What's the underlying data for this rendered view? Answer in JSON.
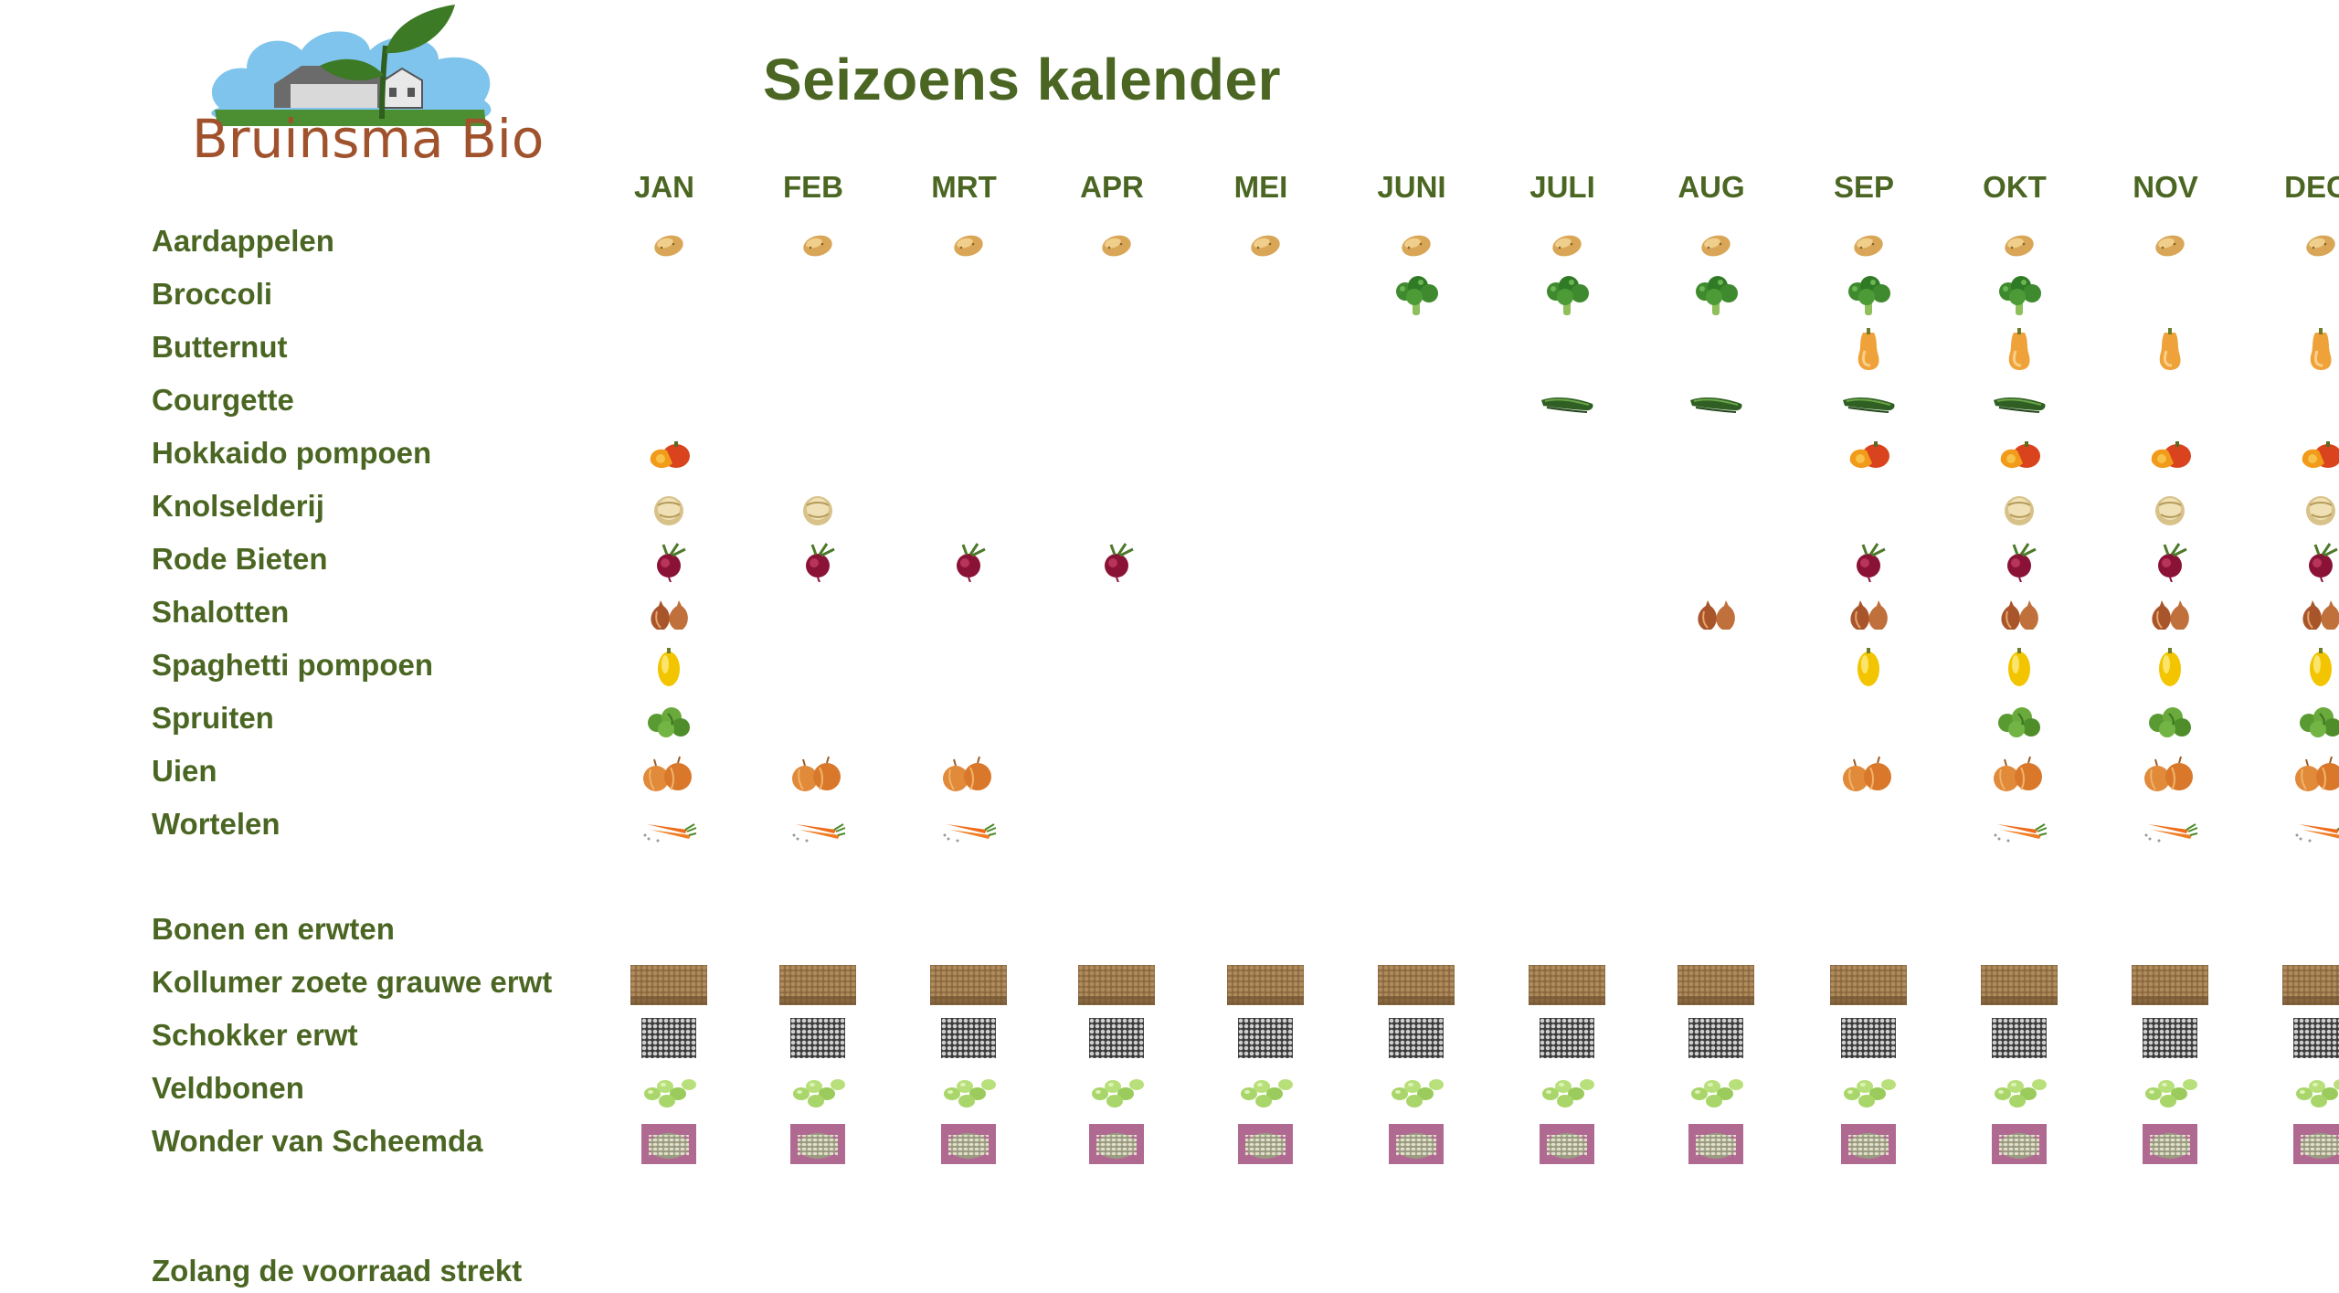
{
  "logo": {
    "brand": "Bruinsma Bio"
  },
  "title": "Seizoens kalender",
  "months": [
    "JAN",
    "FEB",
    "MRT",
    "APR",
    "MEI",
    "JUNI",
    "JULI",
    "AUG",
    "SEP",
    "OKT",
    "NOV",
    "DEC"
  ],
  "vegetables": [
    {
      "label": "Aardappelen",
      "icon": "potato-icon",
      "months": [
        1,
        1,
        1,
        1,
        1,
        1,
        1,
        1,
        1,
        1,
        1,
        1
      ]
    },
    {
      "label": "Broccoli",
      "icon": "broccoli-icon",
      "months": [
        0,
        0,
        0,
        0,
        0,
        1,
        1,
        1,
        1,
        1,
        0,
        0
      ]
    },
    {
      "label": "Butternut",
      "icon": "butternut-icon",
      "months": [
        0,
        0,
        0,
        0,
        0,
        0,
        0,
        0,
        1,
        1,
        1,
        1
      ]
    },
    {
      "label": "Courgette",
      "icon": "courgette-icon",
      "months": [
        0,
        0,
        0,
        0,
        0,
        0,
        1,
        1,
        1,
        1,
        0,
        0
      ]
    },
    {
      "label": "Hokkaido pompoen",
      "icon": "hokkaido-pumpkin-icon",
      "months": [
        1,
        0,
        0,
        0,
        0,
        0,
        0,
        0,
        1,
        1,
        1,
        1
      ]
    },
    {
      "label": "Knolselderij",
      "icon": "celeriac-icon",
      "months": [
        1,
        1,
        0,
        0,
        0,
        0,
        0,
        0,
        0,
        1,
        1,
        1
      ]
    },
    {
      "label": "Rode Bieten",
      "icon": "beetroot-icon",
      "months": [
        1,
        1,
        1,
        1,
        0,
        0,
        0,
        0,
        1,
        1,
        1,
        1
      ]
    },
    {
      "label": "Shalotten",
      "icon": "shallot-icon",
      "months": [
        1,
        0,
        0,
        0,
        0,
        0,
        0,
        1,
        1,
        1,
        1,
        1
      ]
    },
    {
      "label": "Spaghetti pompoen",
      "icon": "spaghetti-squash-icon",
      "months": [
        1,
        0,
        0,
        0,
        0,
        0,
        0,
        0,
        1,
        1,
        1,
        1
      ]
    },
    {
      "label": "Spruiten",
      "icon": "brussels-sprouts-icon",
      "months": [
        1,
        0,
        0,
        0,
        0,
        0,
        0,
        0,
        0,
        1,
        1,
        1
      ]
    },
    {
      "label": "Uien",
      "icon": "onion-icon",
      "months": [
        1,
        1,
        1,
        0,
        0,
        0,
        0,
        0,
        1,
        1,
        1,
        1
      ]
    },
    {
      "label": "Wortelen",
      "icon": "carrot-icon",
      "months": [
        1,
        1,
        1,
        0,
        0,
        0,
        0,
        0,
        0,
        1,
        1,
        1
      ]
    }
  ],
  "section_title": "Bonen en erwten",
  "legumes": [
    {
      "label": "Kollumer zoete grauwe erwt",
      "icon": "grey-pea-photo-icon",
      "months": [
        1,
        1,
        1,
        1,
        1,
        1,
        1,
        1,
        1,
        1,
        1,
        1
      ]
    },
    {
      "label": "Schokker erwt",
      "icon": "schokker-pea-photo-icon",
      "months": [
        1,
        1,
        1,
        1,
        1,
        1,
        1,
        1,
        1,
        1,
        1,
        1
      ]
    },
    {
      "label": "Veldbonen",
      "icon": "broad-bean-icon",
      "months": [
        1,
        1,
        1,
        1,
        1,
        1,
        1,
        1,
        1,
        1,
        1,
        1
      ]
    },
    {
      "label": "Wonder van Scheemda",
      "icon": "scheemda-bean-photo-icon",
      "months": [
        1,
        1,
        1,
        1,
        1,
        1,
        1,
        1,
        1,
        1,
        1,
        1
      ]
    }
  ],
  "footer": "Zolang de voorraad strekt",
  "colors": {
    "text": "#4a6622",
    "logo_brown": "#a0522d",
    "sky": "#7fc4ec",
    "grass": "#4c8f32"
  }
}
